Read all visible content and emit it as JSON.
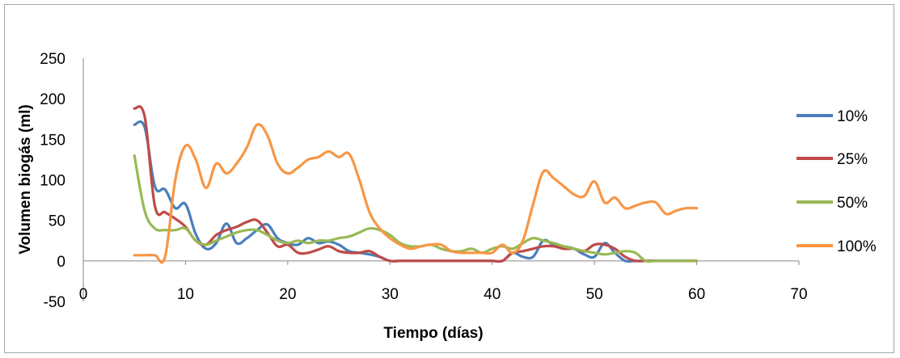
{
  "chart_data": {
    "type": "line",
    "title": "",
    "xlabel": "Tiempo (días)",
    "ylabel": "Volumen biogás  (ml)",
    "xlim": [
      0,
      70
    ],
    "ylim": [
      -50,
      250
    ],
    "xticks": [
      0,
      10,
      20,
      30,
      40,
      50,
      60,
      70
    ],
    "yticks": [
      -50,
      0,
      50,
      100,
      150,
      200,
      250
    ],
    "grid": false,
    "legend_position": "right",
    "series": [
      {
        "name": "10%",
        "color": "#4a7ebb",
        "x": [
          5,
          6,
          7,
          8,
          9,
          10,
          11,
          12,
          13,
          14,
          15,
          16,
          17,
          18,
          19,
          20,
          21,
          22,
          23,
          24,
          25,
          26,
          27,
          28,
          29,
          30,
          31,
          32,
          33,
          34,
          35,
          36,
          37,
          38,
          39,
          40,
          41,
          42,
          43,
          44,
          45,
          46,
          47,
          48,
          49,
          50,
          51,
          52,
          53,
          54,
          55,
          56,
          57,
          58,
          59,
          60
        ],
        "y": [
          168,
          165,
          92,
          88,
          65,
          70,
          33,
          15,
          22,
          46,
          22,
          28,
          38,
          45,
          28,
          22,
          20,
          28,
          22,
          24,
          20,
          12,
          10,
          8,
          5,
          0,
          0,
          0,
          0,
          0,
          0,
          0,
          0,
          0,
          0,
          0,
          0,
          10,
          5,
          5,
          25,
          20,
          18,
          15,
          8,
          5,
          22,
          10,
          0,
          0,
          0,
          0,
          0,
          0,
          0,
          0
        ]
      },
      {
        "name": "25%",
        "color": "#be4b48",
        "x": [
          5,
          6,
          7,
          8,
          9,
          10,
          11,
          12,
          13,
          14,
          15,
          16,
          17,
          18,
          19,
          20,
          21,
          22,
          23,
          24,
          25,
          26,
          27,
          28,
          29,
          30,
          31,
          32,
          33,
          34,
          35,
          36,
          37,
          38,
          39,
          40,
          41,
          42,
          43,
          44,
          45,
          46,
          47,
          48,
          49,
          50,
          51,
          52,
          53,
          54,
          55,
          56,
          57,
          58,
          59,
          60
        ],
        "y": [
          188,
          178,
          68,
          60,
          52,
          42,
          25,
          20,
          32,
          38,
          42,
          48,
          50,
          35,
          18,
          20,
          10,
          10,
          14,
          18,
          12,
          10,
          10,
          12,
          5,
          0,
          0,
          0,
          0,
          0,
          0,
          0,
          0,
          0,
          0,
          0,
          0,
          10,
          12,
          15,
          18,
          18,
          15,
          15,
          12,
          20,
          20,
          15,
          5,
          0,
          0,
          0,
          0,
          0,
          0,
          0
        ]
      },
      {
        "name": "50%",
        "color": "#98b954",
        "x": [
          5,
          6,
          7,
          8,
          9,
          10,
          11,
          12,
          13,
          14,
          15,
          16,
          17,
          18,
          19,
          20,
          21,
          22,
          23,
          24,
          25,
          26,
          27,
          28,
          29,
          30,
          31,
          32,
          33,
          34,
          35,
          36,
          37,
          38,
          39,
          40,
          41,
          42,
          43,
          44,
          45,
          46,
          47,
          48,
          49,
          50,
          51,
          52,
          53,
          54,
          55,
          56,
          57,
          58,
          59,
          60
        ],
        "y": [
          130,
          62,
          40,
          38,
          38,
          40,
          25,
          20,
          25,
          30,
          35,
          38,
          38,
          32,
          25,
          22,
          25,
          22,
          25,
          25,
          28,
          30,
          35,
          40,
          38,
          32,
          22,
          18,
          18,
          20,
          15,
          12,
          12,
          15,
          10,
          15,
          18,
          15,
          22,
          28,
          25,
          22,
          18,
          15,
          12,
          10,
          8,
          10,
          12,
          10,
          0,
          0,
          0,
          0,
          0,
          0
        ]
      },
      {
        "name": "100%",
        "color": "#f79646",
        "x": [
          5,
          6,
          7,
          8,
          9,
          10,
          11,
          12,
          13,
          14,
          15,
          16,
          17,
          18,
          19,
          20,
          21,
          22,
          23,
          24,
          25,
          26,
          27,
          28,
          29,
          30,
          31,
          32,
          33,
          34,
          35,
          36,
          37,
          38,
          39,
          40,
          41,
          42,
          43,
          44,
          45,
          46,
          47,
          48,
          49,
          50,
          51,
          52,
          53,
          54,
          55,
          56,
          57,
          58,
          59,
          60
        ],
        "y": [
          7,
          7,
          7,
          5,
          100,
          142,
          125,
          90,
          120,
          108,
          120,
          140,
          168,
          155,
          120,
          108,
          115,
          125,
          128,
          135,
          128,
          132,
          100,
          60,
          40,
          28,
          20,
          15,
          18,
          20,
          20,
          12,
          10,
          10,
          10,
          10,
          20,
          10,
          25,
          70,
          110,
          102,
          92,
          82,
          80,
          98,
          72,
          78,
          65,
          68,
          72,
          72,
          58,
          62,
          65,
          65
        ]
      }
    ]
  }
}
